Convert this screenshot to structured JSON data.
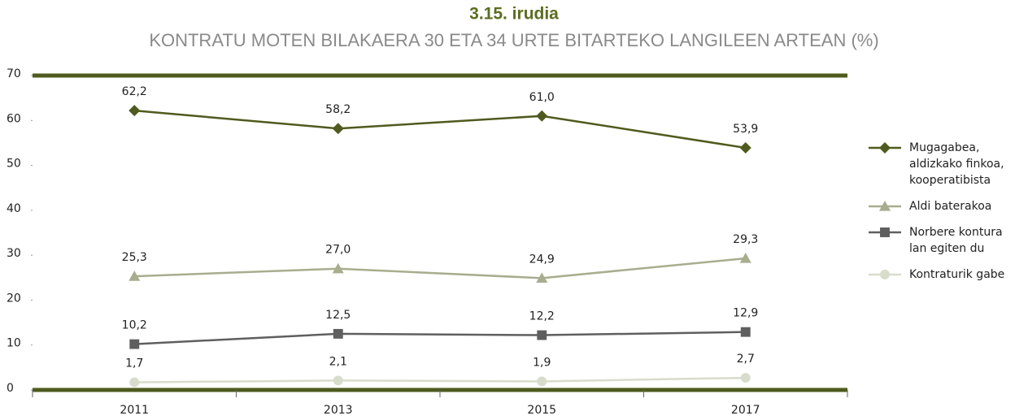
{
  "chart_data": {
    "type": "line",
    "title": "3.15. irudia",
    "subtitle": "KONTRATU MOTEN BILAKAERA 30 ETA 34 URTE BITARTEKO LANGILEEN ARTEAN (%)",
    "categories": [
      "2011",
      "2013",
      "2015",
      "2017"
    ],
    "series": [
      {
        "name": "Mugagabea, aldizkako finkoa, kooperatibista",
        "color": "#4f5a1e",
        "marker": "diamond",
        "values": [
          62.2,
          58.2,
          61.0,
          53.9
        ],
        "value_labels": [
          "62,2",
          "58,2",
          "61,0",
          "53,9"
        ]
      },
      {
        "name": "Aldi baterakoa",
        "color": "#a8ad8e",
        "marker": "triangle",
        "values": [
          25.3,
          27.0,
          24.9,
          29.3
        ],
        "value_labels": [
          "25,3",
          "27,0",
          "24,9",
          "29,3"
        ]
      },
      {
        "name": "Norbere kontura lan egiten du",
        "color": "#5f5f5f",
        "marker": "square",
        "values": [
          10.2,
          12.5,
          12.2,
          12.9
        ],
        "value_labels": [
          "10,2",
          "12,5",
          "12,2",
          "12,9"
        ]
      },
      {
        "name": "Kontraturik gabe",
        "color": "#d8dccb",
        "marker": "circle",
        "values": [
          1.7,
          2.1,
          1.9,
          2.7
        ],
        "value_labels": [
          "1,7",
          "2,1",
          "1,9",
          "2,7"
        ]
      }
    ],
    "ylim": [
      0,
      70
    ],
    "yticks": [
      0,
      10,
      20,
      30,
      40,
      50,
      60,
      70
    ],
    "frame_color": "#4f5a1e",
    "legend": "right"
  }
}
